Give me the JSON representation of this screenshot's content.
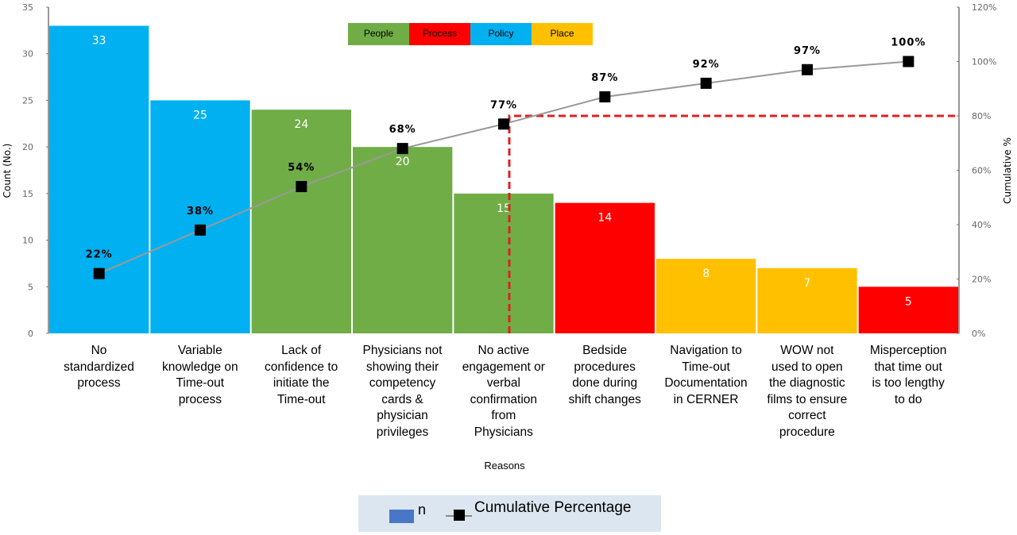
{
  "chart_data": {
    "type": "bar",
    "title": "",
    "xlabel": "Reasons",
    "ylabel": "Count (No.)",
    "y2label": "Cumulative %",
    "ylim": [
      0,
      35
    ],
    "y2lim": [
      0,
      120
    ],
    "yticks": [
      "0",
      "5",
      "10",
      "15",
      "20",
      "25",
      "30",
      "35"
    ],
    "y2ticks": [
      "0%",
      "20%",
      "40%",
      "60%",
      "80%",
      "100%",
      "120%"
    ],
    "grid": false,
    "categories": [
      [
        "No",
        "standardized",
        "process"
      ],
      [
        "Variable",
        "knowledge on",
        "Time-out",
        "process"
      ],
      [
        "Lack of",
        "confidence to",
        "initiate the",
        "Time-out"
      ],
      [
        "Physicians not",
        "showing their",
        "competency",
        "cards &",
        "physician",
        "privileges"
      ],
      [
        "No active",
        "engagement or",
        "verbal",
        "confirmation",
        "from",
        "Physicians"
      ],
      [
        "Bedside",
        "procedures",
        "done during",
        "shift changes"
      ],
      [
        "Navigation to",
        "Time-out",
        "Documentation",
        "in CERNER"
      ],
      [
        "WOW not",
        "used to open",
        "the diagnostic",
        "films to ensure",
        "correct",
        "procedure"
      ],
      [
        "Misperception",
        "that time out",
        "is too lengthy",
        "to do"
      ]
    ],
    "values": [
      33,
      25,
      24,
      20,
      15,
      14,
      8,
      7,
      5
    ],
    "bar_labels": [
      "33",
      "25",
      "24",
      "20",
      "15",
      "14",
      "8",
      "7",
      "5"
    ],
    "bar_groups": [
      "Policy",
      "Policy",
      "People",
      "People",
      "People",
      "Process",
      "Place",
      "Place",
      "Process"
    ],
    "cumulative_percent": [
      22,
      38,
      54,
      68,
      77,
      87,
      92,
      97,
      100
    ],
    "cumulative_labels": [
      "22%",
      "38%",
      "54%",
      "68%",
      "77%",
      "87%",
      "92%",
      "97%",
      "100%"
    ],
    "threshold_percent": 80,
    "group_legend": [
      {
        "name": "People",
        "color": "#70ad47"
      },
      {
        "name": "Process",
        "color": "#ff0000"
      },
      {
        "name": "Policy",
        "color": "#00b0f0"
      },
      {
        "name": "Place",
        "color": "#ffc000"
      }
    ],
    "series": [
      {
        "name": "n",
        "type": "bar",
        "legend_color": "#4a76c8"
      },
      {
        "name": "Cumulative Percentage",
        "type": "line",
        "line_color": "#999999",
        "marker_color": "#000000"
      }
    ],
    "threshold_color": "#e02020",
    "legend_position": "bottom"
  }
}
